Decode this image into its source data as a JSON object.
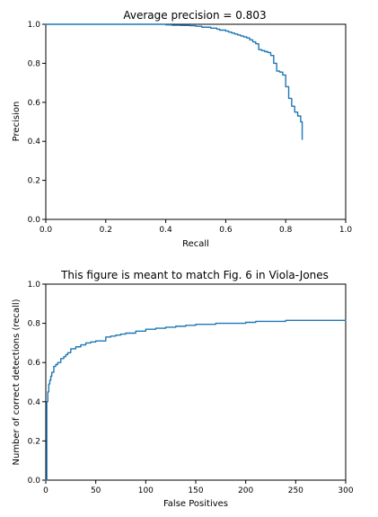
{
  "chart_data": [
    {
      "type": "line",
      "title": "Average precision = 0.803",
      "xlabel": "Recall",
      "ylabel": "Precision",
      "xlim": [
        0.0,
        1.0
      ],
      "ylim": [
        0.0,
        1.0
      ],
      "xticks": [
        0.0,
        0.2,
        0.4,
        0.6,
        0.8,
        1.0
      ],
      "yticks": [
        0.0,
        0.2,
        0.4,
        0.6,
        0.8,
        1.0
      ],
      "xtick_labels": [
        "0.0",
        "0.2",
        "0.4",
        "0.6",
        "0.8",
        "1.0"
      ],
      "ytick_labels": [
        "0.0",
        "0.2",
        "0.4",
        "0.6",
        "0.8",
        "1.0"
      ],
      "grid": false,
      "step": "post",
      "color": "#1f77b4",
      "series": [
        {
          "x": [
            0.0,
            0.05,
            0.1,
            0.15,
            0.2,
            0.25,
            0.3,
            0.35,
            0.38,
            0.4,
            0.42,
            0.45,
            0.48,
            0.5,
            0.52,
            0.55,
            0.57,
            0.58,
            0.6,
            0.61,
            0.62,
            0.63,
            0.64,
            0.65,
            0.66,
            0.67,
            0.68,
            0.69,
            0.7,
            0.71,
            0.72,
            0.73,
            0.74,
            0.75,
            0.76,
            0.77,
            0.78,
            0.79,
            0.8,
            0.81,
            0.82,
            0.83,
            0.84,
            0.85,
            0.855
          ],
          "y": [
            1.0,
            1.0,
            1.0,
            1.0,
            1.0,
            1.0,
            1.0,
            1.0,
            1.0,
            0.997,
            0.995,
            0.994,
            0.993,
            0.99,
            0.985,
            0.98,
            0.975,
            0.97,
            0.965,
            0.96,
            0.955,
            0.95,
            0.945,
            0.94,
            0.935,
            0.93,
            0.92,
            0.91,
            0.9,
            0.87,
            0.865,
            0.86,
            0.855,
            0.84,
            0.8,
            0.76,
            0.755,
            0.74,
            0.68,
            0.62,
            0.58,
            0.55,
            0.53,
            0.5,
            0.41
          ]
        }
      ]
    },
    {
      "type": "line",
      "title": "This figure is meant to match Fig. 6 in Viola-Jones",
      "xlabel": "False Positives",
      "ylabel": "Number of correct detections (recall)",
      "xlim": [
        0,
        300
      ],
      "ylim": [
        0.0,
        1.0
      ],
      "xticks": [
        0,
        50,
        100,
        150,
        200,
        250,
        300
      ],
      "yticks": [
        0.0,
        0.2,
        0.4,
        0.6,
        0.8,
        1.0
      ],
      "xtick_labels": [
        "0",
        "50",
        "100",
        "150",
        "200",
        "250",
        "300"
      ],
      "ytick_labels": [
        "0.0",
        "0.2",
        "0.4",
        "0.6",
        "0.8",
        "1.0"
      ],
      "grid": false,
      "step": "post",
      "color": "#1f77b4",
      "series": [
        {
          "x": [
            0,
            1,
            2,
            3,
            4,
            5,
            6,
            8,
            10,
            12,
            15,
            18,
            20,
            22,
            25,
            30,
            35,
            40,
            45,
            50,
            60,
            65,
            70,
            75,
            80,
            90,
            100,
            110,
            120,
            130,
            140,
            150,
            170,
            190,
            200,
            210,
            220,
            230,
            240,
            250,
            300
          ],
          "y": [
            0.0,
            0.4,
            0.45,
            0.49,
            0.51,
            0.53,
            0.55,
            0.58,
            0.59,
            0.6,
            0.62,
            0.63,
            0.64,
            0.65,
            0.67,
            0.68,
            0.69,
            0.7,
            0.705,
            0.71,
            0.73,
            0.735,
            0.74,
            0.745,
            0.75,
            0.76,
            0.77,
            0.775,
            0.78,
            0.785,
            0.79,
            0.795,
            0.8,
            0.8,
            0.805,
            0.81,
            0.81,
            0.81,
            0.815,
            0.815,
            0.815
          ]
        }
      ]
    }
  ]
}
